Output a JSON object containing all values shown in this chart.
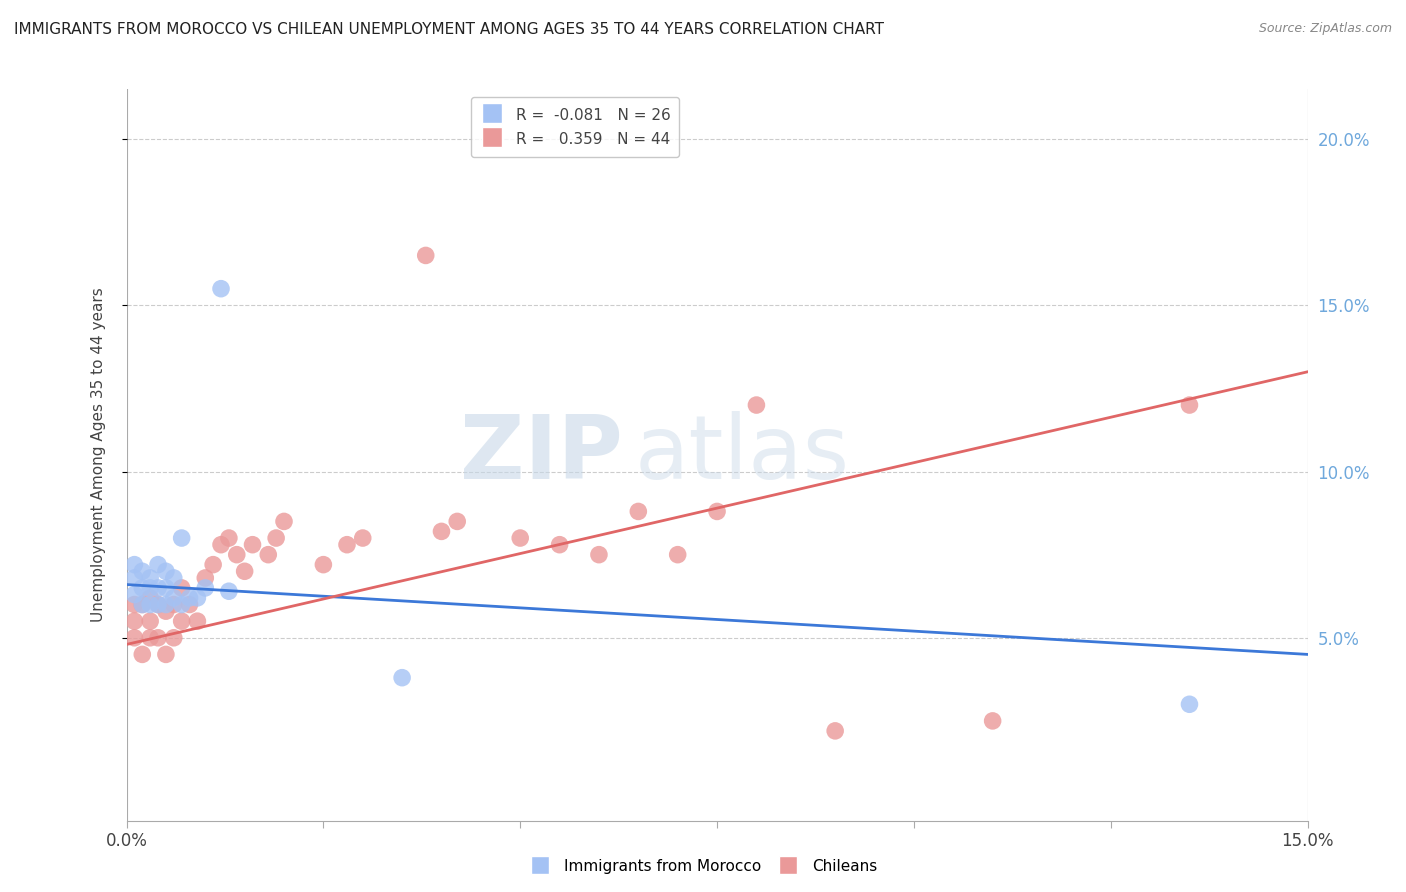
{
  "title": "IMMIGRANTS FROM MOROCCO VS CHILEAN UNEMPLOYMENT AMONG AGES 35 TO 44 YEARS CORRELATION CHART",
  "source": "Source: ZipAtlas.com",
  "ylabel": "Unemployment Among Ages 35 to 44 years",
  "xlim": [
    0.0,
    0.15
  ],
  "ylim": [
    -0.005,
    0.215
  ],
  "xticks": [
    0.0,
    0.025,
    0.05,
    0.075,
    0.1,
    0.125,
    0.15
  ],
  "xticklabels_edge": {
    "0.0": "0.0%",
    "0.15": "15.0%"
  },
  "yticks": [
    0.05,
    0.1,
    0.15,
    0.2
  ],
  "yticklabels": [
    "5.0%",
    "10.0%",
    "15.0%",
    "20.0%"
  ],
  "legend1_label": "R =  -0.081   N = 26",
  "legend2_label": "R =   0.359   N = 44",
  "blue_color": "#a4c2f4",
  "pink_color": "#ea9999",
  "blue_line_color": "#3c78d8",
  "pink_line_color": "#e06666",
  "watermark_zip": "ZIP",
  "watermark_atlas": "atlas",
  "blue_R": -0.081,
  "blue_N": 26,
  "pink_R": 0.359,
  "pink_N": 44,
  "blue_scatter_x": [
    0.001,
    0.001,
    0.001,
    0.002,
    0.002,
    0.002,
    0.003,
    0.003,
    0.003,
    0.004,
    0.004,
    0.004,
    0.005,
    0.005,
    0.005,
    0.006,
    0.006,
    0.007,
    0.007,
    0.008,
    0.009,
    0.01,
    0.012,
    0.013,
    0.035,
    0.135
  ],
  "blue_scatter_y": [
    0.063,
    0.068,
    0.072,
    0.06,
    0.065,
    0.07,
    0.06,
    0.065,
    0.068,
    0.06,
    0.065,
    0.072,
    0.06,
    0.065,
    0.07,
    0.062,
    0.068,
    0.06,
    0.08,
    0.062,
    0.062,
    0.065,
    0.155,
    0.064,
    0.038,
    0.03
  ],
  "pink_scatter_x": [
    0.001,
    0.001,
    0.001,
    0.002,
    0.002,
    0.003,
    0.003,
    0.003,
    0.004,
    0.004,
    0.005,
    0.005,
    0.006,
    0.006,
    0.007,
    0.007,
    0.008,
    0.009,
    0.01,
    0.011,
    0.012,
    0.013,
    0.014,
    0.015,
    0.016,
    0.018,
    0.019,
    0.02,
    0.025,
    0.028,
    0.03,
    0.038,
    0.04,
    0.042,
    0.05,
    0.055,
    0.06,
    0.065,
    0.07,
    0.075,
    0.08,
    0.09,
    0.11,
    0.135
  ],
  "pink_scatter_y": [
    0.05,
    0.055,
    0.06,
    0.045,
    0.06,
    0.05,
    0.055,
    0.062,
    0.05,
    0.06,
    0.045,
    0.058,
    0.05,
    0.06,
    0.055,
    0.065,
    0.06,
    0.055,
    0.068,
    0.072,
    0.078,
    0.08,
    0.075,
    0.07,
    0.078,
    0.075,
    0.08,
    0.085,
    0.072,
    0.078,
    0.08,
    0.165,
    0.082,
    0.085,
    0.08,
    0.078,
    0.075,
    0.088,
    0.075,
    0.088,
    0.12,
    0.022,
    0.025,
    0.12
  ],
  "blue_trend_x": [
    0.0,
    0.15
  ],
  "blue_trend_y": [
    0.066,
    0.045
  ],
  "pink_trend_x": [
    0.0,
    0.15
  ],
  "pink_trend_y": [
    0.048,
    0.13
  ],
  "grid_color": "#cccccc",
  "right_tick_color": "#6fa8dc",
  "legend_box_color": "#cccccc",
  "bottom_legend_items": [
    "Immigrants from Morocco",
    "Chileans"
  ]
}
